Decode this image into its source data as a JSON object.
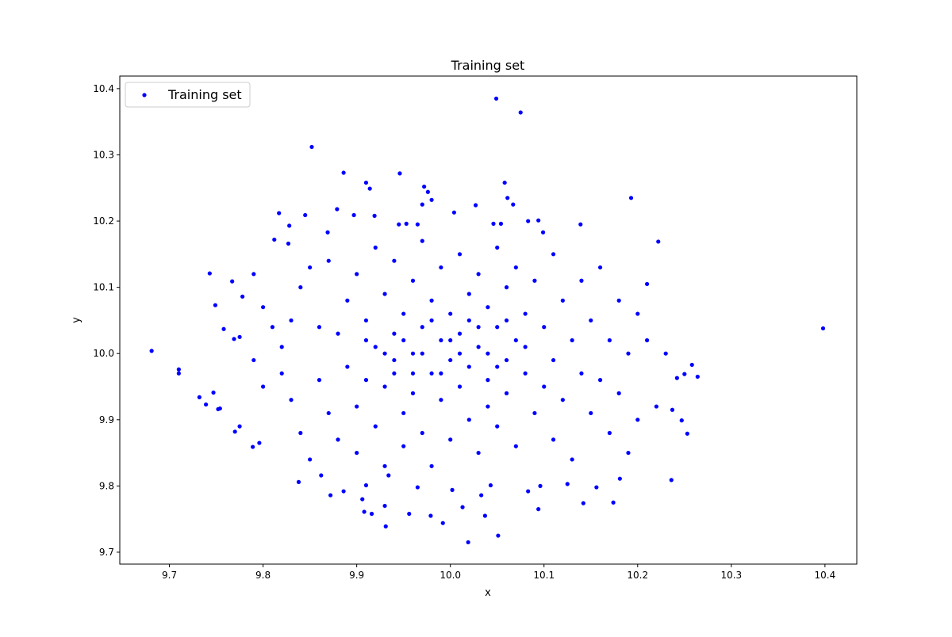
{
  "chart_data": {
    "type": "scatter",
    "title": "Training set",
    "xlabel": "x",
    "ylabel": "y",
    "xlim": [
      9.647,
      10.434
    ],
    "ylim": [
      9.682,
      10.419
    ],
    "xticks": [
      "9.7",
      "9.8",
      "9.9",
      "10.0",
      "10.1",
      "10.2",
      "10.3",
      "10.4"
    ],
    "yticks": [
      "9.7",
      "9.8",
      "9.9",
      "10.0",
      "10.1",
      "10.2",
      "10.3",
      "10.4"
    ],
    "grid": false,
    "legend_position": "top-left",
    "series": [
      {
        "name": "Training set",
        "color": "#0000ff",
        "marker": "circle",
        "points": [
          [
            9.681,
            10.004
          ],
          [
            9.71,
            9.976
          ],
          [
            9.71,
            9.97
          ],
          [
            9.732,
            9.934
          ],
          [
            9.739,
            9.923
          ],
          [
            9.747,
            9.941
          ],
          [
            9.752,
            9.916
          ],
          [
            9.754,
            9.917
          ],
          [
            9.743,
            10.121
          ],
          [
            9.749,
            10.073
          ],
          [
            9.758,
            10.037
          ],
          [
            9.767,
            10.109
          ],
          [
            9.769,
            10.022
          ],
          [
            9.775,
            10.025
          ],
          [
            9.778,
            10.086
          ],
          [
            9.77,
            9.882
          ],
          [
            9.775,
            9.89
          ],
          [
            9.789,
            9.859
          ],
          [
            9.796,
            9.865
          ],
          [
            9.852,
            10.312
          ],
          [
            10.049,
            10.385
          ],
          [
            10.075,
            10.364
          ],
          [
            10.398,
            10.038
          ],
          [
            10.236,
            9.809
          ],
          [
            10.019,
            9.715
          ],
          [
            10.051,
            9.725
          ],
          [
            10.264,
            9.965
          ],
          [
            10.258,
            9.983
          ],
          [
            10.25,
            9.969
          ],
          [
            10.242,
            9.963
          ],
          [
            10.253,
            9.879
          ],
          [
            10.247,
            9.899
          ],
          [
            10.237,
            9.915
          ],
          [
            10.193,
            10.235
          ],
          [
            10.222,
            10.169
          ],
          [
            10.21,
            10.105
          ],
          [
            10.174,
            9.775
          ],
          [
            10.142,
            9.774
          ],
          [
            9.886,
            10.273
          ],
          [
            9.946,
            10.272
          ],
          [
            9.91,
            10.258
          ],
          [
            9.914,
            10.249
          ],
          [
            9.972,
            10.252
          ],
          [
            9.976,
            10.244
          ],
          [
            9.98,
            10.232
          ],
          [
            10.004,
            10.213
          ],
          [
            10.058,
            10.258
          ],
          [
            10.061,
            10.235
          ],
          [
            10.067,
            10.225
          ],
          [
            10.027,
            10.224
          ],
          [
            9.817,
            10.212
          ],
          [
            9.845,
            10.209
          ],
          [
            9.879,
            10.218
          ],
          [
            9.897,
            10.209
          ],
          [
            9.828,
            10.193
          ],
          [
            9.812,
            10.172
          ],
          [
            9.827,
            10.166
          ],
          [
            9.869,
            10.183
          ],
          [
            9.919,
            10.208
          ],
          [
            9.945,
            10.195
          ],
          [
            9.953,
            10.196
          ],
          [
            9.965,
            10.195
          ],
          [
            9.97,
            10.225
          ],
          [
            10.094,
            10.201
          ],
          [
            10.083,
            10.2
          ],
          [
            10.139,
            10.195
          ],
          [
            10.099,
            10.183
          ],
          [
            10.046,
            10.196
          ],
          [
            10.054,
            10.196
          ],
          [
            9.906,
            9.78
          ],
          [
            9.872,
            9.786
          ],
          [
            9.93,
            9.77
          ],
          [
            9.931,
            9.739
          ],
          [
            9.916,
            9.758
          ],
          [
            9.908,
            9.761
          ],
          [
            9.956,
            9.758
          ],
          [
            9.979,
            9.755
          ],
          [
            9.992,
            9.744
          ],
          [
            10.013,
            9.768
          ],
          [
            10.037,
            9.755
          ],
          [
            10.033,
            9.786
          ],
          [
            10.094,
            9.765
          ],
          [
            10.083,
            9.792
          ],
          [
            10.125,
            9.803
          ],
          [
            10.156,
            9.798
          ],
          [
            10.181,
            9.811
          ],
          [
            9.838,
            9.806
          ],
          [
            9.862,
            9.816
          ],
          [
            9.886,
            9.792
          ],
          [
            9.91,
            9.801
          ],
          [
            9.934,
            9.816
          ],
          [
            9.965,
            9.798
          ],
          [
            10.002,
            9.794
          ],
          [
            10.043,
            9.801
          ],
          [
            10.096,
            9.8
          ],
          [
            9.79,
            10.12
          ],
          [
            9.8,
            10.07
          ],
          [
            9.81,
            10.04
          ],
          [
            9.8,
            9.95
          ],
          [
            9.79,
            9.99
          ],
          [
            9.82,
            9.97
          ],
          [
            9.83,
            9.93
          ],
          [
            9.82,
            10.01
          ],
          [
            9.83,
            10.05
          ],
          [
            9.84,
            10.1
          ],
          [
            9.84,
            9.88
          ],
          [
            9.85,
            9.84
          ],
          [
            9.85,
            10.13
          ],
          [
            9.86,
            10.04
          ],
          [
            9.86,
            9.96
          ],
          [
            9.87,
            9.91
          ],
          [
            9.87,
            10.14
          ],
          [
            9.88,
            10.03
          ],
          [
            9.88,
            9.87
          ],
          [
            9.89,
            10.08
          ],
          [
            9.89,
            9.98
          ],
          [
            9.9,
            10.12
          ],
          [
            9.9,
            9.92
          ],
          [
            9.9,
            9.85
          ],
          [
            9.91,
            10.05
          ],
          [
            9.91,
            9.96
          ],
          [
            9.92,
            10.16
          ],
          [
            9.92,
            10.01
          ],
          [
            9.92,
            9.89
          ],
          [
            9.93,
            10.09
          ],
          [
            9.93,
            9.95
          ],
          [
            9.93,
            9.83
          ],
          [
            9.94,
            10.14
          ],
          [
            9.94,
            10.03
          ],
          [
            9.94,
            9.97
          ],
          [
            9.95,
            10.06
          ],
          [
            9.95,
            9.91
          ],
          [
            9.95,
            9.86
          ],
          [
            9.96,
            10.11
          ],
          [
            9.96,
            10.0
          ],
          [
            9.96,
            9.94
          ],
          [
            9.97,
            10.17
          ],
          [
            9.97,
            10.04
          ],
          [
            9.97,
            9.88
          ],
          [
            9.98,
            10.08
          ],
          [
            9.98,
            9.97
          ],
          [
            9.98,
            9.83
          ],
          [
            9.99,
            10.13
          ],
          [
            9.99,
            10.02
          ],
          [
            9.99,
            9.93
          ],
          [
            10.0,
            10.06
          ],
          [
            10.0,
            9.99
          ],
          [
            10.0,
            9.87
          ],
          [
            10.01,
            10.15
          ],
          [
            10.01,
            10.03
          ],
          [
            10.01,
            9.95
          ],
          [
            10.02,
            10.09
          ],
          [
            10.02,
            9.98
          ],
          [
            10.02,
            9.9
          ],
          [
            10.03,
            10.12
          ],
          [
            10.03,
            10.01
          ],
          [
            10.03,
            9.85
          ],
          [
            10.04,
            10.07
          ],
          [
            10.04,
            9.96
          ],
          [
            10.04,
            9.92
          ],
          [
            10.05,
            10.16
          ],
          [
            10.05,
            10.04
          ],
          [
            10.05,
            9.89
          ],
          [
            10.06,
            10.1
          ],
          [
            10.06,
            9.99
          ],
          [
            10.06,
            9.94
          ],
          [
            10.07,
            10.13
          ],
          [
            10.07,
            10.02
          ],
          [
            10.07,
            9.86
          ],
          [
            10.08,
            10.06
          ],
          [
            10.08,
            9.97
          ],
          [
            10.09,
            10.11
          ],
          [
            10.09,
            9.91
          ],
          [
            10.1,
            10.04
          ],
          [
            10.1,
            9.95
          ],
          [
            10.11,
            10.15
          ],
          [
            10.11,
            9.99
          ],
          [
            10.11,
            9.87
          ],
          [
            10.12,
            10.08
          ],
          [
            10.12,
            9.93
          ],
          [
            10.13,
            10.02
          ],
          [
            10.13,
            9.84
          ],
          [
            10.14,
            10.11
          ],
          [
            10.14,
            9.97
          ],
          [
            10.15,
            10.05
          ],
          [
            10.15,
            9.91
          ],
          [
            10.16,
            10.13
          ],
          [
            10.16,
            9.96
          ],
          [
            10.17,
            10.02
          ],
          [
            10.17,
            9.88
          ],
          [
            10.18,
            10.08
          ],
          [
            10.18,
            9.94
          ],
          [
            10.19,
            10.0
          ],
          [
            10.19,
            9.85
          ],
          [
            10.2,
            10.06
          ],
          [
            10.2,
            9.9
          ],
          [
            10.21,
            10.02
          ],
          [
            10.22,
            9.92
          ],
          [
            10.23,
            10.0
          ],
          [
            9.95,
            10.02
          ],
          [
            9.97,
            10.0
          ],
          [
            9.99,
            9.97
          ],
          [
            10.01,
            10.0
          ],
          [
            10.03,
            10.04
          ],
          [
            10.05,
            9.98
          ],
          [
            10.06,
            10.05
          ],
          [
            9.98,
            10.05
          ],
          [
            9.93,
            10.0
          ],
          [
            9.91,
            10.02
          ],
          [
            10.08,
            10.01
          ],
          [
            10.04,
            10.0
          ],
          [
            9.96,
            9.97
          ],
          [
            10.02,
            10.05
          ],
          [
            10.0,
            10.02
          ],
          [
            9.94,
            9.99
          ]
        ]
      }
    ]
  }
}
